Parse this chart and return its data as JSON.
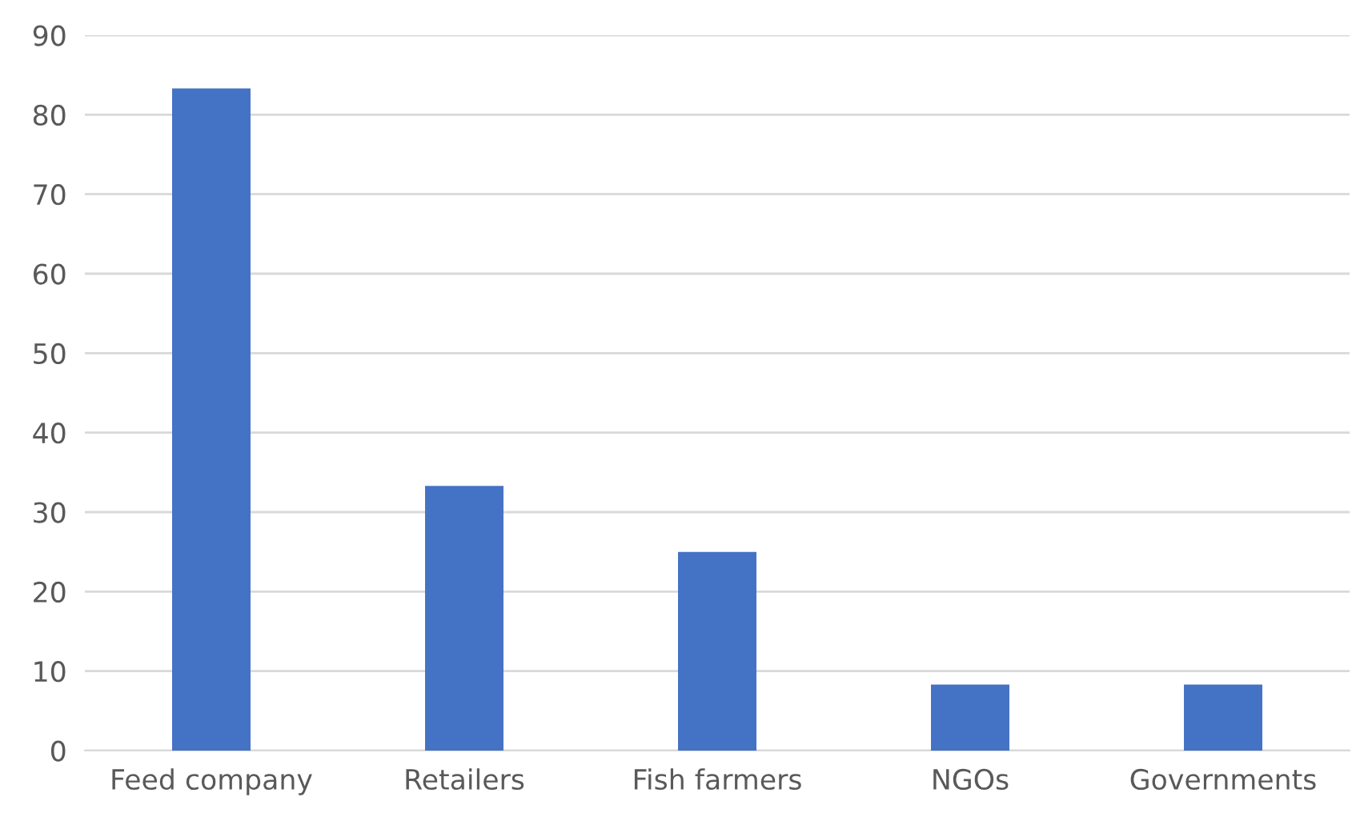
{
  "chart_data": {
    "type": "bar",
    "categories": [
      "Feed company",
      "Retailers",
      "Fish farmers",
      "NGOs",
      "Governments"
    ],
    "values": [
      83.3,
      33.3,
      25,
      8.3,
      8.3
    ],
    "color": "#4472c4",
    "ylim": [
      0,
      90
    ],
    "yticks": [
      0,
      10,
      20,
      30,
      40,
      50,
      60,
      70,
      80,
      90
    ],
    "grid": "y",
    "legend": false
  }
}
